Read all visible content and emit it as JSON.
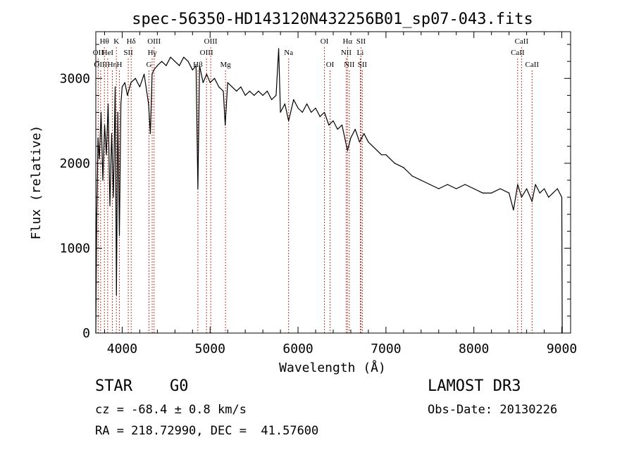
{
  "chart_data": {
    "type": "line",
    "title": "spec-56350-HD143120N432256B01_sp07-043.fits",
    "xlabel": "Wavelength (Å)",
    "ylabel": "Flux (relative)",
    "xlim": [
      3700,
      9100
    ],
    "ylim": [
      0,
      3550
    ],
    "xticks": [
      4000,
      5000,
      6000,
      7000,
      8000,
      9000
    ],
    "yticks": [
      0,
      1000,
      2000,
      3000
    ],
    "grid": false,
    "series": [
      {
        "name": "flux",
        "x": [
          3700,
          3710,
          3725,
          3740,
          3760,
          3780,
          3800,
          3820,
          3840,
          3860,
          3880,
          3900,
          3920,
          3935,
          3950,
          3968,
          3985,
          4000,
          4030,
          4060,
          4100,
          4150,
          4200,
          4250,
          4300,
          4320,
          4340,
          4360,
          4400,
          4450,
          4500,
          4550,
          4600,
          4650,
          4700,
          4750,
          4800,
          4840,
          4861,
          4880,
          4920,
          4960,
          5000,
          5050,
          5100,
          5150,
          5172,
          5200,
          5250,
          5300,
          5350,
          5400,
          5450,
          5500,
          5550,
          5600,
          5650,
          5700,
          5750,
          5780,
          5800,
          5850,
          5893,
          5950,
          6000,
          6050,
          6100,
          6150,
          6200,
          6250,
          6300,
          6350,
          6400,
          6450,
          6500,
          6563,
          6600,
          6650,
          6700,
          6750,
          6800,
          6850,
          6900,
          6950,
          7000,
          7100,
          7200,
          7300,
          7400,
          7500,
          7600,
          7700,
          7800,
          7900,
          8000,
          8100,
          8200,
          8300,
          8400,
          8450,
          8498,
          8542,
          8600,
          8662,
          8700,
          8750,
          8800,
          8850,
          8900,
          8950,
          9000,
          9005
        ],
        "values": [
          0,
          1300,
          2300,
          2050,
          2600,
          1800,
          2450,
          2100,
          2700,
          1500,
          2350,
          1600,
          2900,
          450,
          2600,
          1150,
          2700,
          2900,
          2950,
          2800,
          2950,
          3000,
          2900,
          3050,
          2700,
          2350,
          3050,
          3100,
          3150,
          3200,
          3150,
          3250,
          3200,
          3150,
          3250,
          3200,
          3100,
          3150,
          1700,
          3150,
          2950,
          3050,
          2950,
          3000,
          2900,
          2850,
          2450,
          2950,
          2900,
          2850,
          2900,
          2800,
          2850,
          2800,
          2850,
          2800,
          2850,
          2750,
          2800,
          3350,
          2600,
          2700,
          2500,
          2750,
          2650,
          2600,
          2700,
          2600,
          2650,
          2550,
          2600,
          2450,
          2500,
          2400,
          2450,
          2150,
          2300,
          2400,
          2250,
          2350,
          2250,
          2200,
          2150,
          2100,
          2100,
          2000,
          1950,
          1850,
          1800,
          1750,
          1700,
          1750,
          1700,
          1750,
          1700,
          1650,
          1650,
          1700,
          1650,
          1450,
          1750,
          1600,
          1700,
          1550,
          1750,
          1650,
          1700,
          1600,
          1650,
          1700,
          1600,
          0
        ]
      }
    ],
    "annotation_lines": [
      {
        "name": "H-theta",
        "label": "Hθ",
        "wavelength": 3798,
        "row": 0
      },
      {
        "name": "O-II",
        "label": "OII",
        "wavelength": 3727,
        "row": 1
      },
      {
        "name": "O-III-blue",
        "label": "OIII",
        "wavelength": 3755,
        "row": 2
      },
      {
        "name": "He-I",
        "label": "HeI",
        "wavelength": 3835,
        "row": 1
      },
      {
        "name": "H-eta",
        "label": "Hη",
        "wavelength": 3888,
        "row": 2
      },
      {
        "name": "Ca-K",
        "label": "K",
        "wavelength": 3934,
        "row": 0
      },
      {
        "name": "S-II-blue",
        "label": "SII",
        "wavelength": 4069,
        "row": 1
      },
      {
        "name": "Ca-H",
        "label": "H",
        "wavelength": 3968,
        "row": 2
      },
      {
        "name": "H-delta",
        "label": "Hδ",
        "wavelength": 4102,
        "row": 0
      },
      {
        "name": "O-III-4363",
        "label": "OIII",
        "wavelength": 4363,
        "row": 0
      },
      {
        "name": "H-gamma",
        "label": "Hγ",
        "wavelength": 4341,
        "row": 1
      },
      {
        "name": "G-band",
        "label": "G",
        "wavelength": 4305,
        "row": 2
      },
      {
        "name": "H-beta",
        "label": "Hβ",
        "wavelength": 4861,
        "row": 2
      },
      {
        "name": "O-III-5007",
        "label": "OIII",
        "wavelength": 5007,
        "row": 0
      },
      {
        "name": "O-III-4959",
        "label": "OIII",
        "wavelength": 4959,
        "row": 1
      },
      {
        "name": "Mg",
        "label": "Mg",
        "wavelength": 5175,
        "row": 2
      },
      {
        "name": "Na",
        "label": "Na",
        "wavelength": 5893,
        "row": 1
      },
      {
        "name": "O-I-6300",
        "label": "OI",
        "wavelength": 6300,
        "row": 0
      },
      {
        "name": "O-I-6364",
        "label": "OI",
        "wavelength": 6364,
        "row": 2
      },
      {
        "name": "H-alpha",
        "label": "Hα",
        "wavelength": 6563,
        "row": 0
      },
      {
        "name": "N-II-6548",
        "label": "NII",
        "wavelength": 6548,
        "row": 1
      },
      {
        "name": "N-II-6583",
        "label": "NII",
        "wavelength": 6583,
        "row": 2
      },
      {
        "name": "S-II-6716",
        "label": "SII",
        "wavelength": 6716,
        "row": 0
      },
      {
        "name": "Li",
        "label": "Li",
        "wavelength": 6708,
        "row": 1
      },
      {
        "name": "S-II-6731",
        "label": "SII",
        "wavelength": 6731,
        "row": 2
      },
      {
        "name": "Ca-II-8542",
        "label": "CaII",
        "wavelength": 8542,
        "row": 0
      },
      {
        "name": "Ca-II-8498",
        "label": "CaII",
        "wavelength": 8498,
        "row": 1
      },
      {
        "name": "Ca-II-8662",
        "label": "CaII",
        "wavelength": 8662,
        "row": 2
      }
    ]
  },
  "info": {
    "object_class": "STAR    G0",
    "survey": "LAMOST DR3",
    "cz": "cz = -68.4 ± 0.8 km/s",
    "obs_date": "Obs-Date: 20130226",
    "radec": "RA = 218.72990, DEC =  41.57600"
  },
  "colors": {
    "spectrum": "#000000",
    "line_marker": "#c0392b",
    "axis": "#000000",
    "background": "#ffffff"
  }
}
